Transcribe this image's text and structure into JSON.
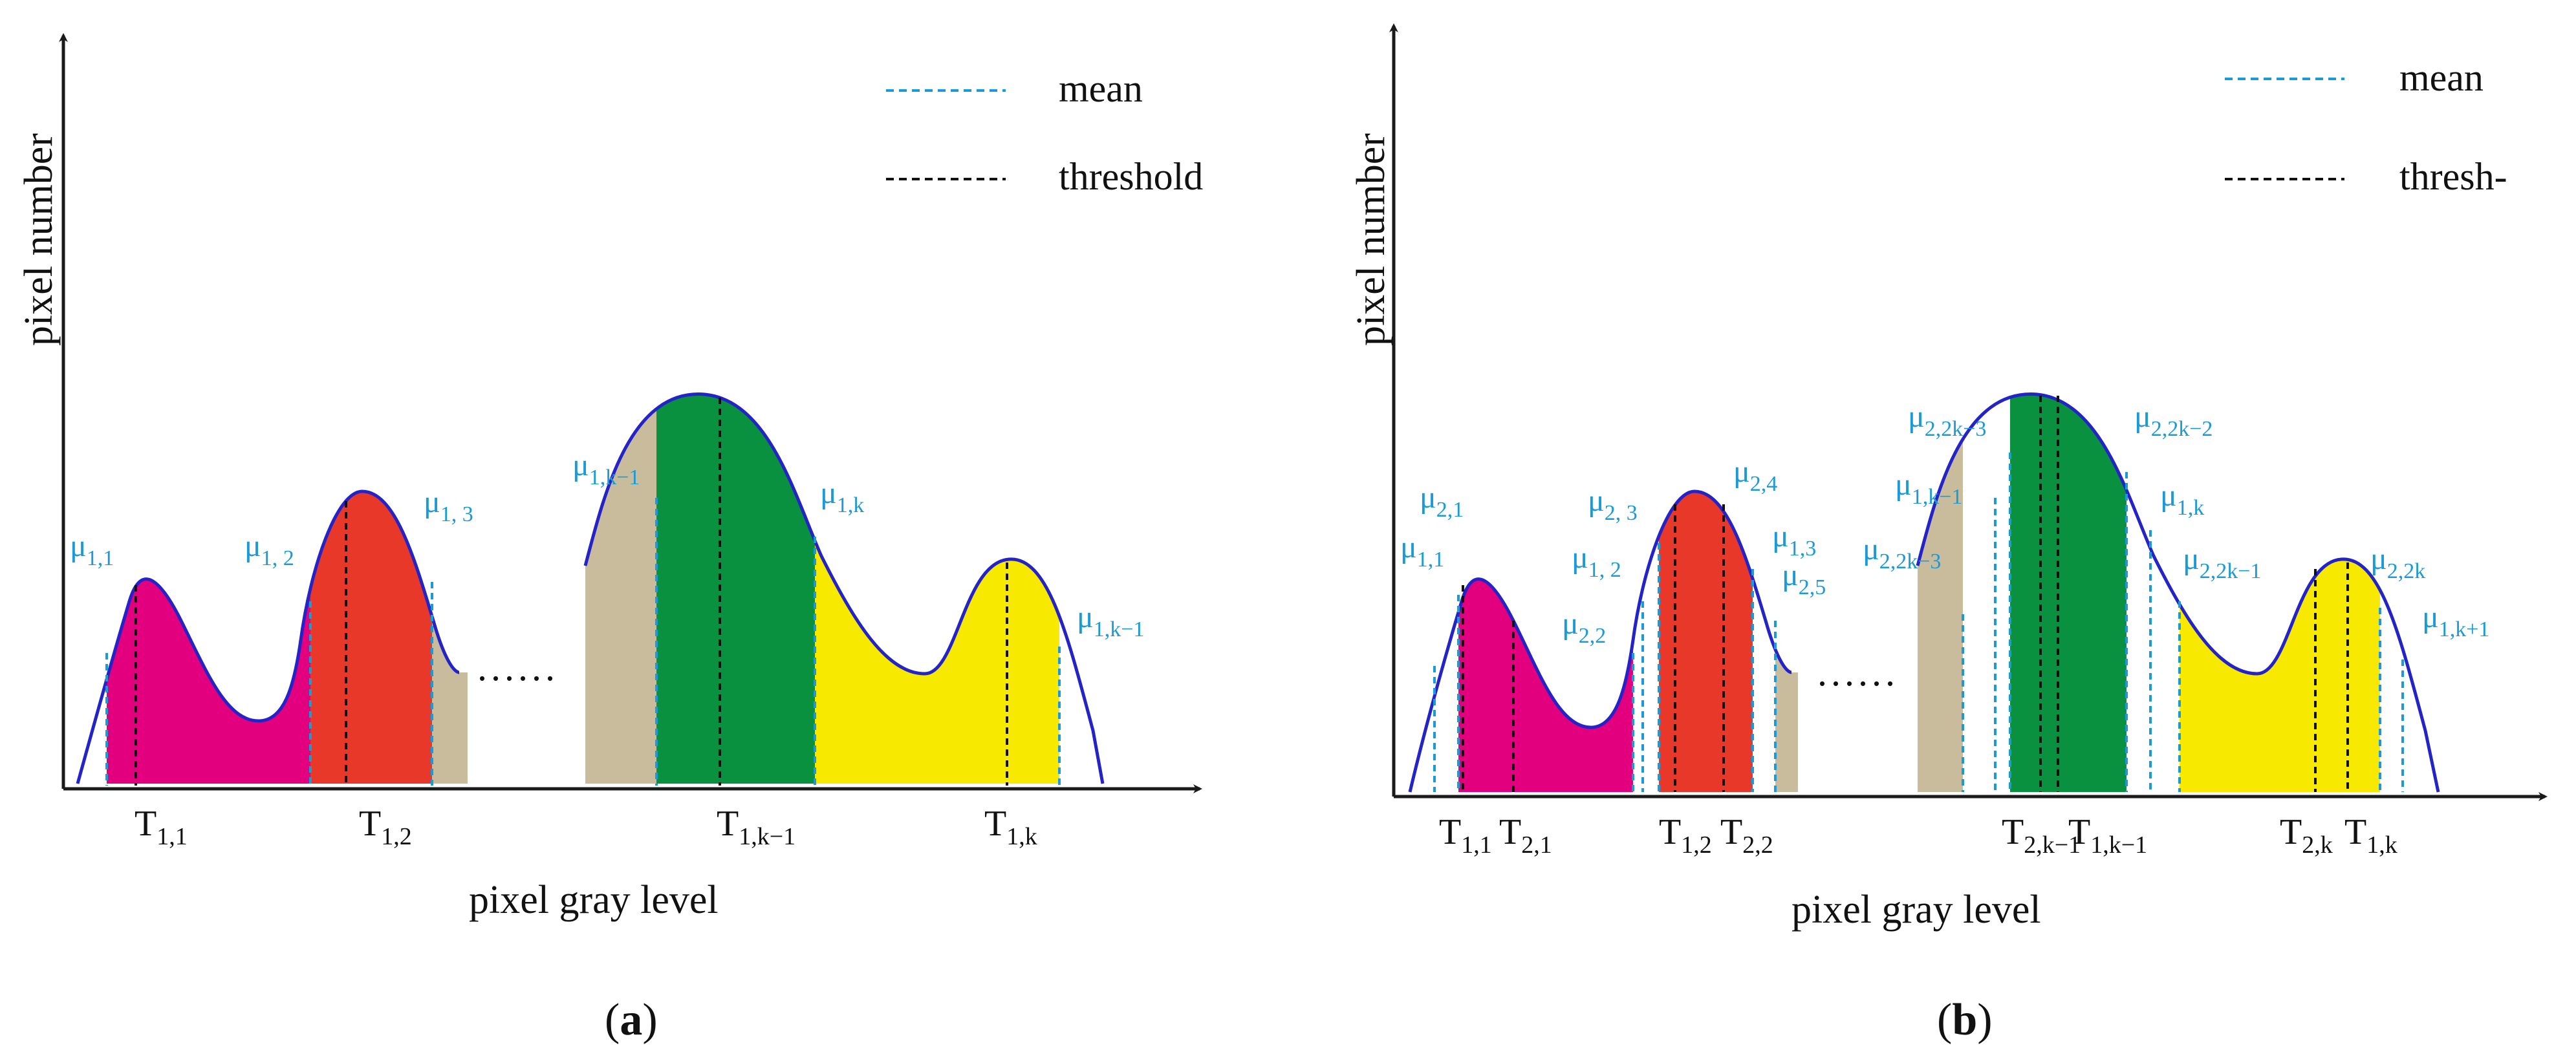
{
  "panel_a": {
    "y_axis_label": "pixel number",
    "x_axis_label": "pixel gray level",
    "legend": {
      "mean_label": "mean",
      "threshold_label": "threshold"
    },
    "caption_letter": "a",
    "ellipsis": "......",
    "means": [
      {
        "base": "μ",
        "sub": "1,1"
      },
      {
        "base": "μ",
        "sub": "1, 2"
      },
      {
        "base": "μ",
        "sub": "1, 3"
      },
      {
        "base": "μ",
        "sub": "1,k−1"
      },
      {
        "base": "μ",
        "sub": "1,k"
      },
      {
        "base": "μ",
        "sub": "1,k−1"
      }
    ],
    "thresholds": [
      {
        "base": "T",
        "sub": "1,1"
      },
      {
        "base": "T",
        "sub": "1,2"
      },
      {
        "base": "T",
        "sub": "1,k−1"
      },
      {
        "base": "T",
        "sub": "1,k"
      }
    ]
  },
  "panel_b": {
    "y_axis_label": "pixel number",
    "x_axis_label": "pixel gray level",
    "legend": {
      "mean_label": "mean",
      "threshold_label": "thresh-"
    },
    "caption_letter": "b",
    "ellipsis": "......",
    "means": [
      {
        "base": "μ",
        "sub": "2,1"
      },
      {
        "base": "μ",
        "sub": "1,1"
      },
      {
        "base": "μ",
        "sub": "2, 3"
      },
      {
        "base": "μ",
        "sub": "1, 2"
      },
      {
        "base": "μ",
        "sub": "2,2"
      },
      {
        "base": "μ",
        "sub": "2,4"
      },
      {
        "base": "μ",
        "sub": "1,3"
      },
      {
        "base": "μ",
        "sub": "2,5"
      },
      {
        "base": "μ",
        "sub": "2,2k−3"
      },
      {
        "base": "μ",
        "sub": "1,k−1"
      },
      {
        "base": "μ",
        "sub": "2,2k−3"
      },
      {
        "base": "μ",
        "sub": "2,2k−2"
      },
      {
        "base": "μ",
        "sub": "1,k"
      },
      {
        "base": "μ",
        "sub": "2,2k−1"
      },
      {
        "base": "μ",
        "sub": "2,2k"
      },
      {
        "base": "μ",
        "sub": "1,k+1"
      }
    ],
    "thresholds": [
      {
        "base": "T",
        "sub": "1,1"
      },
      {
        "base": "T",
        "sub": "2,1"
      },
      {
        "base": "T",
        "sub": "1,2"
      },
      {
        "base": "T",
        "sub": "2,2"
      },
      {
        "base": "T",
        "sub": "2,k−1"
      },
      {
        "base": "T",
        "sub": "1,k−1"
      },
      {
        "base": "T",
        "sub": "2,k"
      },
      {
        "base": "T",
        "sub": "1,k"
      }
    ]
  },
  "colors": {
    "curve": "#2323c8",
    "mean_line": "#1a9ad6",
    "threshold_line": "#111111",
    "magenta": "#e3007f",
    "red": "#e8382a",
    "tan": "#c9bc9c",
    "green": "#0a9140",
    "yellow": "#f7ea00",
    "axis": "#1a1a1a"
  }
}
